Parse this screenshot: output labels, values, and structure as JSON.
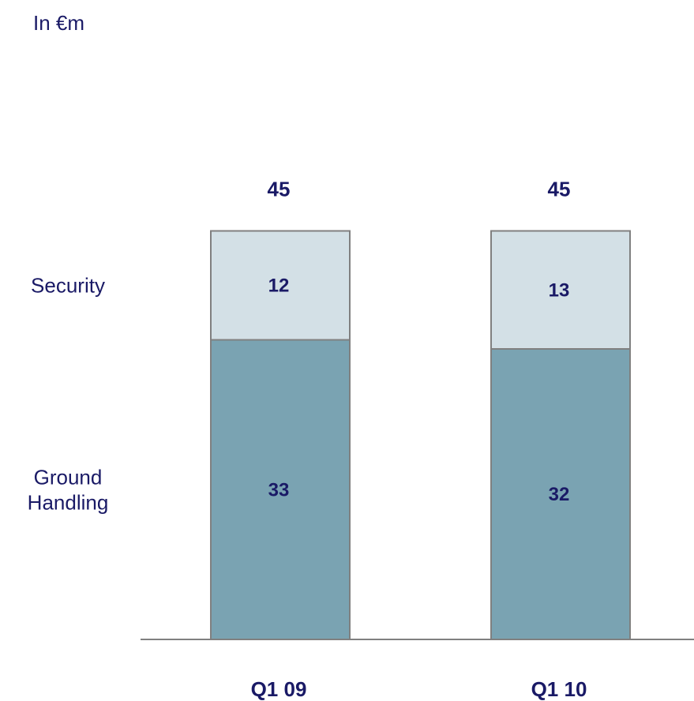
{
  "unit_label": "In €m",
  "chart_data": {
    "type": "bar",
    "stacked": true,
    "categories": [
      "Q1 09",
      "Q1 10"
    ],
    "series": [
      {
        "name": "Ground Handling",
        "values": [
          33,
          32
        ],
        "label_lines": [
          "Ground",
          "Handling"
        ],
        "color": "#7aa3b2"
      },
      {
        "name": "Security",
        "values": [
          12,
          13
        ],
        "label_lines": [
          "Security"
        ],
        "color": "#d3e0e6"
      }
    ],
    "totals": [
      45,
      45
    ],
    "title": "",
    "xlabel": "",
    "ylabel": "",
    "ylim": [
      0,
      45
    ],
    "grid": false,
    "legend": "left",
    "bar_edge_color": "#808080",
    "axis_color": "#808080",
    "text_color": "#1a1a66"
  }
}
